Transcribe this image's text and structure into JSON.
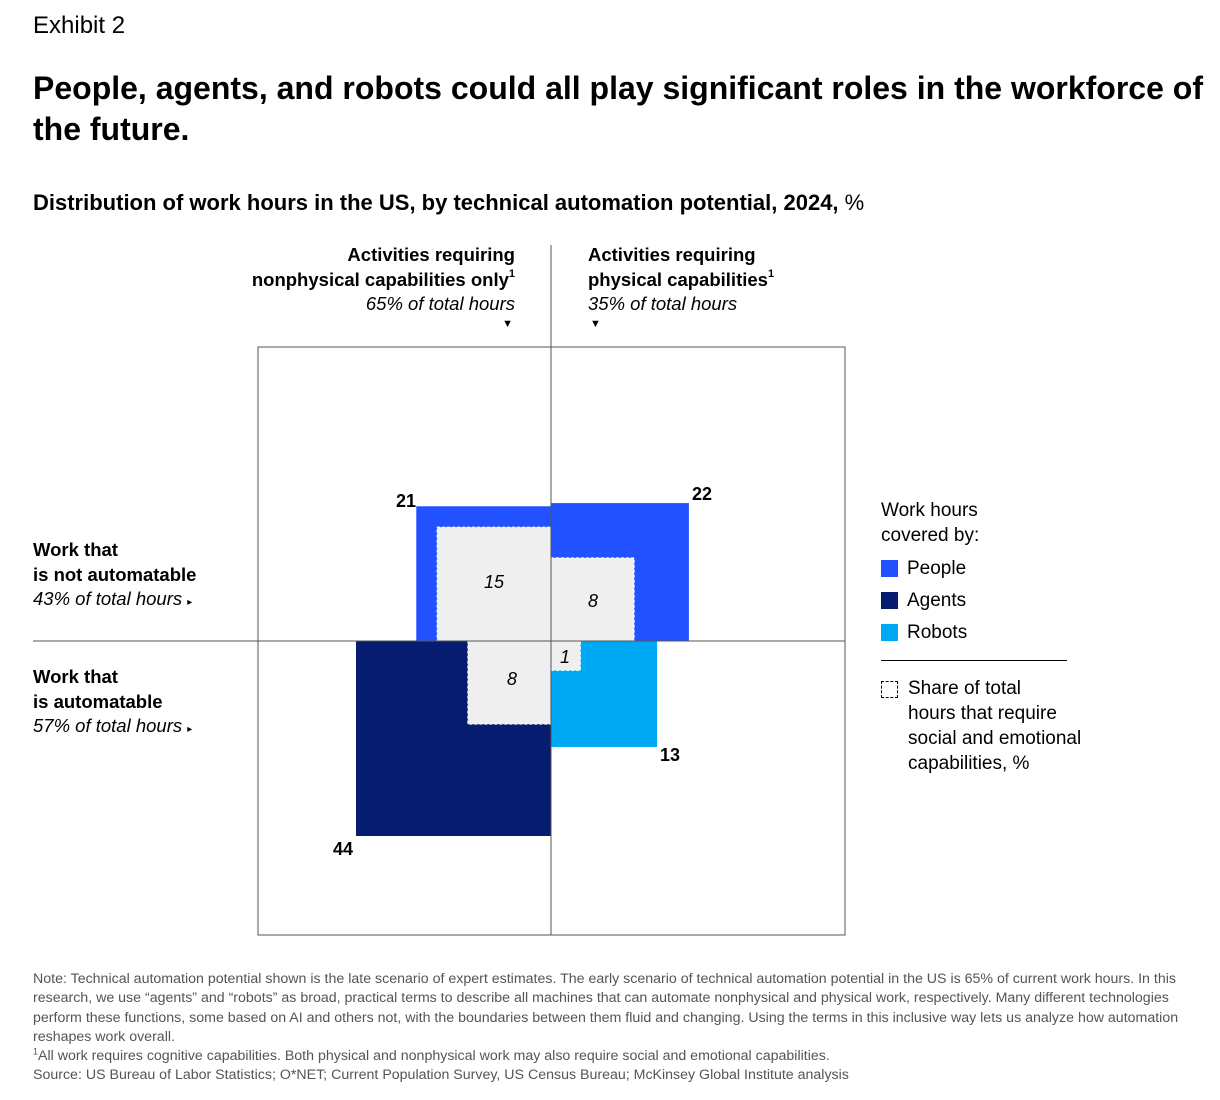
{
  "exhibit": "Exhibit 2",
  "title": "People, agents, and robots could all play significant roles in the workforce of the future.",
  "subtitle": {
    "bold": "Distribution of work hours in the US, by technical automation potential, 2024,",
    "unit": " %"
  },
  "columns": {
    "left": {
      "line1": "Activities requiring",
      "line2": "nonphysical capabilities only",
      "sup": "1",
      "share": "65% of total hours",
      "marker": "▼"
    },
    "right": {
      "line1": "Activities requiring",
      "line2": "physical capabilities",
      "sup": "1",
      "share": "35% of total hours",
      "marker": "▼"
    }
  },
  "rows": {
    "top": {
      "line1": "Work that",
      "line2": "is not automatable",
      "share": "43% of total hours",
      "marker": "▸"
    },
    "bottom": {
      "line1": "Work that",
      "line2": "is automatable",
      "share": "57% of total hours",
      "marker": "▸"
    }
  },
  "chart_data": {
    "type": "quadrant-area",
    "quadrants": [
      {
        "name": "People (nonphysical)",
        "row": "not automatable",
        "column": "nonphysical",
        "category": "People",
        "value": 21,
        "social_emotional_share": 15
      },
      {
        "name": "People (physical)",
        "row": "not automatable",
        "column": "physical",
        "category": "People",
        "value": 22,
        "social_emotional_share": 8
      },
      {
        "name": "Agents",
        "row": "automatable",
        "column": "nonphysical",
        "category": "Agents",
        "value": 44,
        "social_emotional_share": 8
      },
      {
        "name": "Robots",
        "row": "automatable",
        "column": "physical",
        "category": "Robots",
        "value": 13,
        "social_emotional_share": 1
      }
    ],
    "labels": {
      "q1": "21",
      "q2": "22",
      "q3": "44",
      "q4": "13",
      "s1": "15",
      "s2": "8",
      "s3": "8",
      "s4": "1"
    }
  },
  "legend": {
    "title_line1": "Work hours",
    "title_line2": "covered by:",
    "items": [
      {
        "label": "People",
        "color": "#2251ff"
      },
      {
        "label": "Agents",
        "color": "#051c6f"
      },
      {
        "label": "Robots",
        "color": "#00a9f4"
      }
    ],
    "share_line1": "Share of total",
    "share_line2": "hours that require",
    "share_line3": "social and emotional",
    "share_line4": "capabilities, %"
  },
  "notes": {
    "note": "Note: Technical automation potential shown is the late scenario of expert estimates. The early scenario of technical automation potential in the US is 65% of current work hours. In this research, we use “agents” and “robots” as broad, practical terms to describe all machines that can automate nonphysical and physical work, respectively. Many different technologies perform these functions, some based on AI and others not, with the boundaries between them fluid and changing. Using the terms in this inclusive way lets us analyze how automation reshapes work overall.",
    "footnote_mark": "1",
    "footnote": "All work requires cognitive capabilities. Both physical and nonphysical work may also require social and emotional capabilities.",
    "source": "Source: US Bureau of Labor Statistics; O*NET; Current Population Survey, US Census Bureau; McKinsey Global Institute analysis"
  },
  "colors": {
    "people": "#2251ff",
    "agents": "#051c6f",
    "robots": "#00a9f4",
    "share": "#efefef",
    "grid": "#555555"
  }
}
